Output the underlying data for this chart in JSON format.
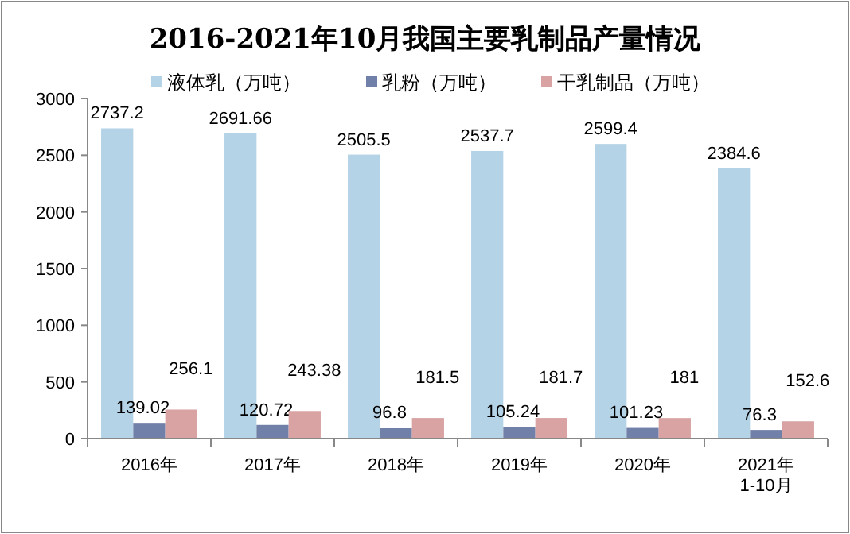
{
  "chart_data": {
    "type": "bar",
    "title": "2016-2021年10月我国主要乳制品产量情况",
    "categories": [
      "2016年",
      "2017年",
      "2018年",
      "2019年",
      "2020年",
      "2021年\n1-10月"
    ],
    "series": [
      {
        "name": "液体乳（万吨）",
        "color": "#b4d3e6",
        "values": [
          2737.2,
          2691.66,
          2505.5,
          2537.7,
          2599.4,
          2384.6
        ]
      },
      {
        "name": "乳粉（万吨）",
        "color": "#7180a8",
        "values": [
          139.02,
          120.72,
          96.8,
          105.24,
          101.23,
          76.3
        ]
      },
      {
        "name": "干乳制品（万吨）",
        "color": "#d9a3a3",
        "values": [
          256.1,
          243.38,
          181.5,
          181.7,
          181,
          152.6
        ]
      }
    ],
    "ylim": [
      0,
      3000
    ],
    "yticks": [
      0,
      500,
      1000,
      1500,
      2000,
      2500,
      3000
    ],
    "data_labels": true,
    "legend": "top"
  }
}
